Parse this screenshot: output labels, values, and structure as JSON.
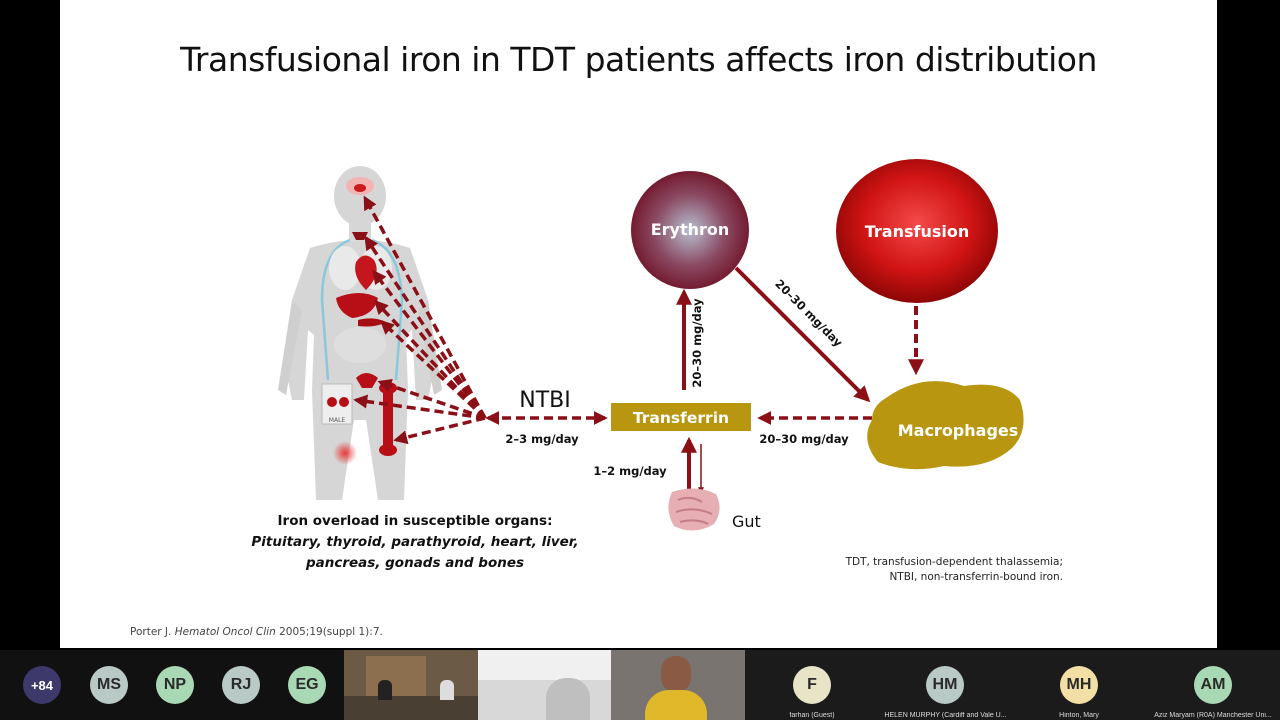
{
  "slide": {
    "title": "Transfusional iron in TDT patients affects iron distribution",
    "nodes": {
      "erythron": "Erythron",
      "transfusion": "Transfusion",
      "transferrin": "Transferrin",
      "macrophages": "Macrophages",
      "ntbi": "NTBI",
      "gut": "Gut"
    },
    "rates": {
      "transferrin_to_erythron": "20–30 mg/day",
      "erythron_to_macrophages": "20–30 mg/day",
      "macrophages_to_transferrin": "20–30 mg/day",
      "ntbi": "2–3 mg/day",
      "gut": "1–2 mg/day"
    },
    "body_label": "MALE",
    "caption": {
      "line1": "Iron overload in susceptible organs:",
      "line2": "Pituitary, thyroid, parathyroid, heart, liver,",
      "line3": "pancreas, gonads and bones"
    },
    "abbreviations": {
      "line1": "TDT, transfusion-dependent thalassemia;",
      "line2": "NTBI, non-transferrin-bound iron."
    },
    "citation": {
      "author": "Porter J.",
      "journal": "Hematol Oncol Clin",
      "details": "2005;19(suppl 1):7."
    }
  },
  "participants": {
    "overflow_count": "+84",
    "avatars": [
      {
        "initials": "MS",
        "color": "#b9c9c6",
        "name": ""
      },
      {
        "initials": "NP",
        "color": "#a9d9b4",
        "name": ""
      },
      {
        "initials": "RJ",
        "color": "#b9c9c6",
        "name": ""
      },
      {
        "initials": "EG",
        "color": "#a9d9b4",
        "name": ""
      },
      {
        "initials": "F",
        "color": "#e8e4c8",
        "name": "farhan (Guest)"
      },
      {
        "initials": "HM",
        "color": "#b9c9c6",
        "name": "HELEN MURPHY (Cardiff and Vale U..."
      },
      {
        "initials": "MH",
        "color": "#f2dfa6",
        "name": "Hinton, Mary"
      },
      {
        "initials": "AM",
        "color": "#a9d9b4",
        "name": "Aziz Maryam (R0A) Manchester Uni..."
      }
    ],
    "colors": {
      "overflow_badge": "#3d3a6b"
    }
  }
}
